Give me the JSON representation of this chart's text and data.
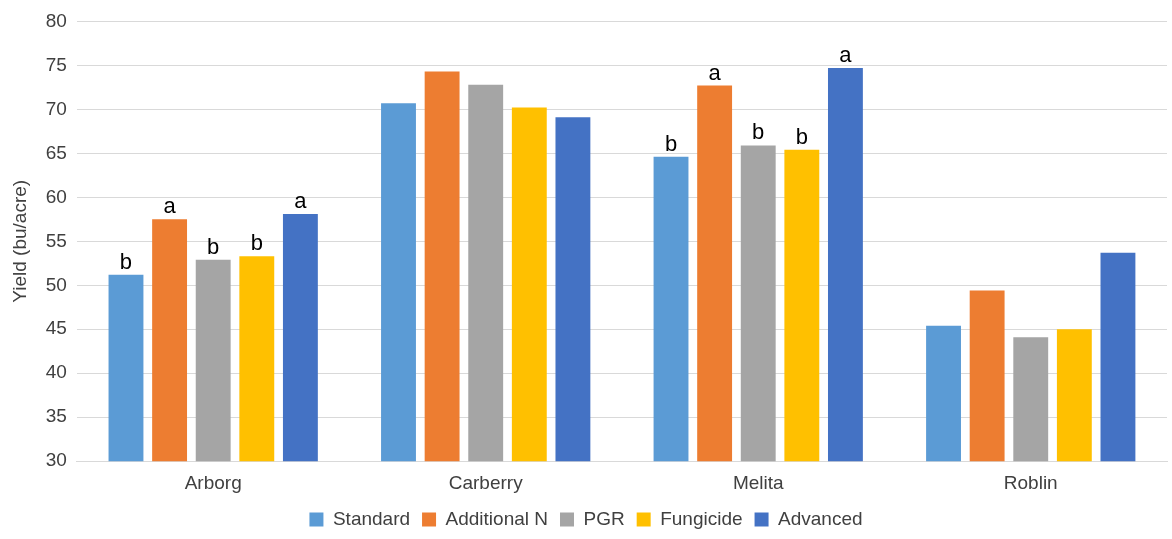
{
  "chart_data": {
    "type": "bar",
    "ylabel": "Yield (bu/acre)",
    "categories": [
      "Arborg",
      "Carberry",
      "Melita",
      "Roblin"
    ],
    "series": [
      {
        "name": "Standard",
        "color": "#5b9bd5",
        "values": [
          51.2,
          70.7,
          64.6,
          45.4
        ],
        "value_labels": [
          "b",
          null,
          "b",
          null
        ]
      },
      {
        "name": "Additional N",
        "color": "#ed7d31",
        "values": [
          57.5,
          74.3,
          72.7,
          49.4
        ],
        "value_labels": [
          "a",
          null,
          "a",
          null
        ]
      },
      {
        "name": "PGR",
        "color": "#a5a5a5",
        "values": [
          52.9,
          72.8,
          65.9,
          44.1
        ],
        "value_labels": [
          "b",
          null,
          "b",
          null
        ]
      },
      {
        "name": "Fungicide",
        "color": "#ffc000",
        "values": [
          53.3,
          70.2,
          65.4,
          45.0
        ],
        "value_labels": [
          "b",
          null,
          "b",
          null
        ]
      },
      {
        "name": "Advanced",
        "color": "#4472c4",
        "values": [
          58.1,
          69.1,
          74.7,
          53.7
        ],
        "value_labels": [
          "a",
          null,
          "a",
          null
        ]
      }
    ],
    "ylim": [
      30,
      80
    ],
    "yticks": [
      30,
      35,
      40,
      45,
      50,
      55,
      60,
      65,
      70,
      75,
      80
    ],
    "grid": "y",
    "legend": "bottom"
  }
}
